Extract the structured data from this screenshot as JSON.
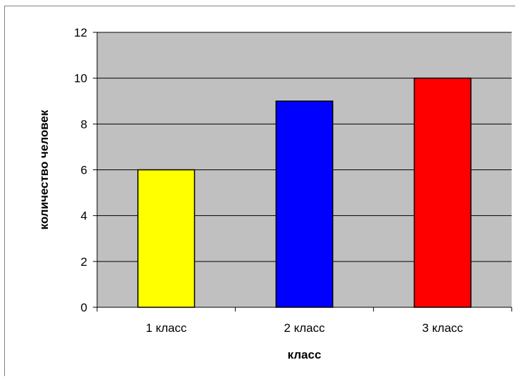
{
  "chart_data": {
    "type": "bar",
    "categories": [
      "1 класс",
      "2 класс",
      "3 класс"
    ],
    "values": [
      6,
      9,
      10
    ],
    "title": "",
    "xlabel": "класс",
    "ylabel": "количество человек",
    "ylim": [
      0,
      12
    ],
    "yticks": [
      0,
      2,
      4,
      6,
      8,
      10,
      12
    ],
    "grid": true,
    "legend": "none",
    "bar_colors": [
      "#ffff00",
      "#0000ff",
      "#ff0000"
    ],
    "plot_background": "#c0c0c0",
    "gridline_color": "#000000"
  }
}
